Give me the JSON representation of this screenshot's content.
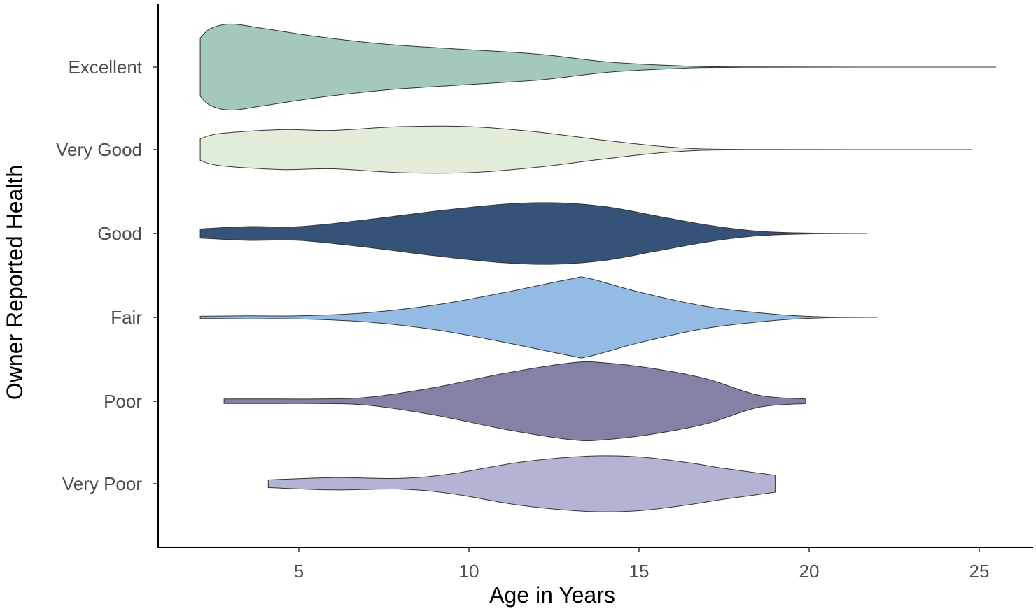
{
  "chart_data": {
    "type": "violin",
    "orientation": "horizontal",
    "xlabel": "Age in Years",
    "ylabel": "Owner Reported Health",
    "xlim": [
      1.9,
      26.3
    ],
    "x_ticks": [
      5,
      10,
      15,
      20,
      25
    ],
    "grid": false,
    "legend": "none",
    "categories": [
      "Excellent",
      "Very Good",
      "Good",
      "Fair",
      "Poor",
      "Very Poor"
    ],
    "series": [
      {
        "name": "Excellent",
        "color": "#a3c9bd",
        "density": [
          [
            2.1,
            0.38
          ],
          [
            2.4,
            0.5
          ],
          [
            3.0,
            0.56
          ],
          [
            4.0,
            0.5
          ],
          [
            5.5,
            0.4
          ],
          [
            7.5,
            0.3
          ],
          [
            9.5,
            0.24
          ],
          [
            12.0,
            0.17
          ],
          [
            14.0,
            0.07
          ],
          [
            16.0,
            0.02
          ],
          [
            18.0,
            0.002
          ],
          [
            25.5,
            0.0
          ]
        ]
      },
      {
        "name": "Very Good",
        "color": "#e1edd9",
        "density": [
          [
            2.1,
            0.14
          ],
          [
            2.7,
            0.21
          ],
          [
            4.5,
            0.26
          ],
          [
            6.0,
            0.25
          ],
          [
            8.0,
            0.3
          ],
          [
            10.0,
            0.3
          ],
          [
            12.0,
            0.23
          ],
          [
            14.0,
            0.12
          ],
          [
            16.0,
            0.03
          ],
          [
            18.0,
            0.003
          ],
          [
            24.8,
            0.0
          ]
        ]
      },
      {
        "name": "Good",
        "color": "#355279",
        "density": [
          [
            2.1,
            0.06
          ],
          [
            3.5,
            0.09
          ],
          [
            5.0,
            0.09
          ],
          [
            7.0,
            0.18
          ],
          [
            9.0,
            0.29
          ],
          [
            11.0,
            0.38
          ],
          [
            12.5,
            0.4
          ],
          [
            14.0,
            0.35
          ],
          [
            15.5,
            0.23
          ],
          [
            17.0,
            0.11
          ],
          [
            18.5,
            0.03
          ],
          [
            20.0,
            0.005
          ],
          [
            21.7,
            0.0
          ]
        ]
      },
      {
        "name": "Fair",
        "color": "#94bbe3",
        "density": [
          [
            2.1,
            0.015
          ],
          [
            3.5,
            0.02
          ],
          [
            5.0,
            0.02
          ],
          [
            7.0,
            0.06
          ],
          [
            9.0,
            0.16
          ],
          [
            11.0,
            0.32
          ],
          [
            13.0,
            0.5
          ],
          [
            13.5,
            0.51
          ],
          [
            15.0,
            0.33
          ],
          [
            17.0,
            0.14
          ],
          [
            19.0,
            0.04
          ],
          [
            20.5,
            0.005
          ],
          [
            22.0,
            0.0
          ]
        ]
      },
      {
        "name": "Poor",
        "color": "#8481a6",
        "density": [
          [
            2.8,
            0.03
          ],
          [
            4.0,
            0.03
          ],
          [
            5.5,
            0.03
          ],
          [
            7.0,
            0.05
          ],
          [
            9.0,
            0.18
          ],
          [
            11.0,
            0.36
          ],
          [
            13.0,
            0.5
          ],
          [
            14.0,
            0.5
          ],
          [
            15.5,
            0.42
          ],
          [
            17.0,
            0.29
          ],
          [
            18.5,
            0.08
          ],
          [
            19.9,
            0.03
          ]
        ]
      },
      {
        "name": "Very Poor",
        "color": "#b3b3d3",
        "density": [
          [
            4.1,
            0.05
          ],
          [
            6.0,
            0.08
          ],
          [
            8.0,
            0.07
          ],
          [
            9.5,
            0.13
          ],
          [
            11.5,
            0.28
          ],
          [
            13.5,
            0.36
          ],
          [
            15.0,
            0.35
          ],
          [
            16.5,
            0.27
          ],
          [
            17.5,
            0.2
          ],
          [
            19.0,
            0.11
          ]
        ]
      }
    ]
  }
}
